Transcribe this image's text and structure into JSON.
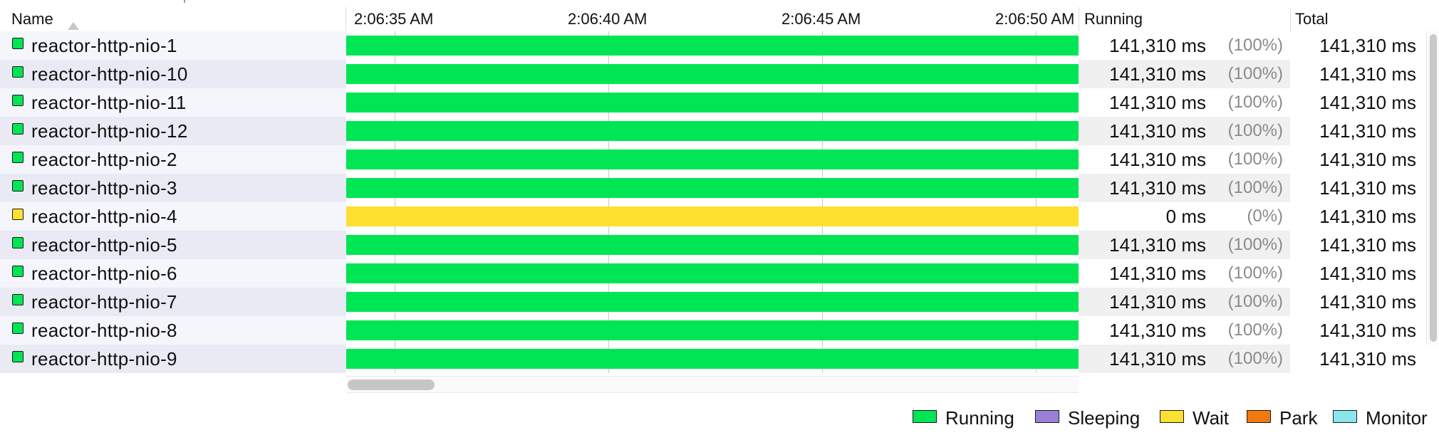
{
  "header": {
    "name_label": "Name",
    "running_label": "Running",
    "total_label": "Total",
    "time_ticks": [
      "2:06:35 AM",
      "2:06:40 AM",
      "2:06:45 AM",
      "2:06:50 AM"
    ]
  },
  "colors": {
    "running": "#00e554",
    "sleeping": "#9a7fd8",
    "wait": "#fde030",
    "park": "#f07a0d",
    "monitor": "#8be6ec"
  },
  "threads": [
    {
      "name": "reactor-http-nio-1",
      "state": "running",
      "running_ms": "141,310 ms",
      "running_pct": "(100%)",
      "total": "141,310 ms"
    },
    {
      "name": "reactor-http-nio-10",
      "state": "running",
      "running_ms": "141,310 ms",
      "running_pct": "(100%)",
      "total": "141,310 ms"
    },
    {
      "name": "reactor-http-nio-11",
      "state": "running",
      "running_ms": "141,310 ms",
      "running_pct": "(100%)",
      "total": "141,310 ms"
    },
    {
      "name": "reactor-http-nio-12",
      "state": "running",
      "running_ms": "141,310 ms",
      "running_pct": "(100%)",
      "total": "141,310 ms"
    },
    {
      "name": "reactor-http-nio-2",
      "state": "running",
      "running_ms": "141,310 ms",
      "running_pct": "(100%)",
      "total": "141,310 ms"
    },
    {
      "name": "reactor-http-nio-3",
      "state": "running",
      "running_ms": "141,310 ms",
      "running_pct": "(100%)",
      "total": "141,310 ms"
    },
    {
      "name": "reactor-http-nio-4",
      "state": "wait",
      "running_ms": "0 ms",
      "running_pct": "(0%)",
      "total": "141,310 ms"
    },
    {
      "name": "reactor-http-nio-5",
      "state": "running",
      "running_ms": "141,310 ms",
      "running_pct": "(100%)",
      "total": "141,310 ms"
    },
    {
      "name": "reactor-http-nio-6",
      "state": "running",
      "running_ms": "141,310 ms",
      "running_pct": "(100%)",
      "total": "141,310 ms"
    },
    {
      "name": "reactor-http-nio-7",
      "state": "running",
      "running_ms": "141,310 ms",
      "running_pct": "(100%)",
      "total": "141,310 ms"
    },
    {
      "name": "reactor-http-nio-8",
      "state": "running",
      "running_ms": "141,310 ms",
      "running_pct": "(100%)",
      "total": "141,310 ms"
    },
    {
      "name": "reactor-http-nio-9",
      "state": "running",
      "running_ms": "141,310 ms",
      "running_pct": "(100%)",
      "total": "141,310 ms"
    }
  ],
  "legend": [
    {
      "label": "Running",
      "color_key": "running"
    },
    {
      "label": "Sleeping",
      "color_key": "sleeping"
    },
    {
      "label": "Wait",
      "color_key": "wait"
    },
    {
      "label": "Park",
      "color_key": "park"
    },
    {
      "label": "Monitor",
      "color_key": "monitor"
    }
  ]
}
